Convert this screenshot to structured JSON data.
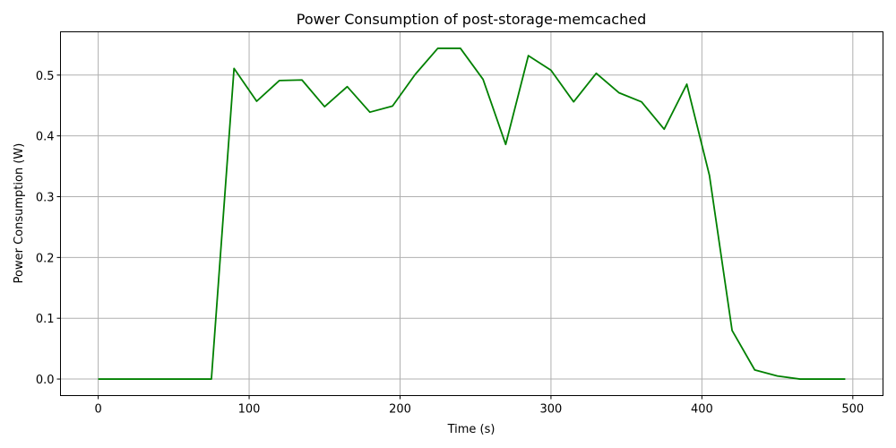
{
  "chart_data": {
    "type": "line",
    "title": "Power Consumption of post-storage-memcached",
    "xlabel": "Time (s)",
    "ylabel": "Power Consumption (W)",
    "xlim": [
      -25,
      520
    ],
    "ylim": [
      -0.0272,
      0.5712
    ],
    "xticks": [
      0,
      100,
      200,
      300,
      400,
      500
    ],
    "xtick_labels": [
      "0",
      "100",
      "200",
      "300",
      "400",
      "500"
    ],
    "yticks": [
      0.0,
      0.1,
      0.2,
      0.3,
      0.4,
      0.5
    ],
    "ytick_labels": [
      "0.0",
      "0.1",
      "0.2",
      "0.3",
      "0.4",
      "0.5"
    ],
    "grid": true,
    "legend": "none",
    "series": [
      {
        "color": "#008000",
        "x": [
          0,
          15,
          30,
          45,
          60,
          75,
          90,
          105,
          120,
          135,
          150,
          165,
          180,
          195,
          210,
          225,
          240,
          255,
          270,
          285,
          300,
          315,
          330,
          345,
          360,
          375,
          390,
          405,
          420,
          435,
          450,
          465,
          480,
          495
        ],
        "y": [
          0,
          0,
          0,
          0,
          0,
          0,
          0.511,
          0.457,
          0.491,
          0.492,
          0.448,
          0.481,
          0.439,
          0.449,
          0.501,
          0.544,
          0.544,
          0.493,
          0.386,
          0.532,
          0.508,
          0.456,
          0.503,
          0.471,
          0.456,
          0.411,
          0.485,
          0.335,
          0.08,
          0.015,
          0.005,
          0.0,
          0.0,
          0.0
        ]
      }
    ]
  }
}
